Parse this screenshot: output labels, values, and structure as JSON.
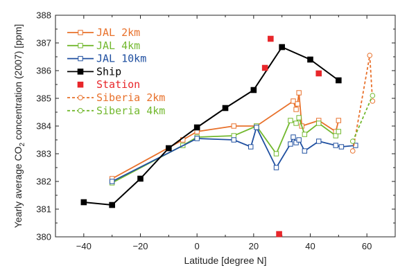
{
  "chart_data": {
    "type": "line",
    "xlabel": "Latitude [degree N]",
    "ylabel_parts": [
      "Yearly average CO",
      "2",
      " concentration (2007) [ppm]"
    ],
    "xlim": [
      -50,
      70
    ],
    "ylim": [
      380,
      388
    ],
    "xticks": [
      -40,
      -20,
      0,
      20,
      40,
      60
    ],
    "yticks": [
      380,
      381,
      382,
      383,
      384,
      385,
      386,
      387,
      388
    ],
    "grid": false,
    "legend_position": "top-left",
    "series": [
      {
        "name": "JAL 2km",
        "color": "#e8702a",
        "marker": "open-square",
        "line": "solid",
        "x": [
          -30,
          -5,
          0,
          13,
          21,
          34,
          35,
          35.5,
          36,
          37,
          43,
          49,
          50
        ],
        "y": [
          382.1,
          383.5,
          383.8,
          384.0,
          384.0,
          384.9,
          384.6,
          384.8,
          385.2,
          384.0,
          384.2,
          383.8,
          384.2
        ]
      },
      {
        "name": "JAL 4km",
        "color": "#72b82e",
        "marker": "open-square",
        "line": "solid",
        "x": [
          -30,
          -5,
          0,
          13,
          21,
          28,
          33,
          35,
          36,
          38,
          43,
          49,
          50
        ],
        "y": [
          381.95,
          383.3,
          383.6,
          383.65,
          384.0,
          383.0,
          384.2,
          384.1,
          384.3,
          383.7,
          384.1,
          383.65,
          383.8
        ]
      },
      {
        "name": "JAL 10km",
        "color": "#1f4fa0",
        "marker": "open-square",
        "line": "solid",
        "x": [
          -30,
          0,
          13,
          19,
          21,
          28,
          33,
          34,
          35,
          36,
          38,
          43,
          49,
          51,
          56
        ],
        "y": [
          382.0,
          383.55,
          383.5,
          383.25,
          383.95,
          382.5,
          383.35,
          383.6,
          383.4,
          383.5,
          383.1,
          383.45,
          383.3,
          383.25,
          383.3
        ]
      },
      {
        "name": "Ship",
        "color": "#000000",
        "marker": "filled-square",
        "line": "solid",
        "x": [
          -40,
          -30,
          -20,
          -10,
          0,
          10,
          20,
          30,
          40,
          50
        ],
        "y": [
          381.25,
          381.15,
          382.1,
          383.2,
          383.95,
          384.65,
          385.3,
          386.85,
          386.4,
          385.65
        ]
      },
      {
        "name": "Station",
        "color": "#e8262a",
        "marker": "filled-square",
        "line": "none",
        "x": [
          24,
          26,
          29,
          43
        ],
        "y": [
          386.1,
          387.15,
          380.1,
          385.9
        ]
      },
      {
        "name": "Siberia 2km",
        "color": "#e8702a",
        "marker": "open-circle",
        "line": "dashed",
        "x": [
          55,
          61,
          62
        ],
        "y": [
          383.1,
          386.55,
          384.9
        ]
      },
      {
        "name": "Siberia 4km",
        "color": "#72b82e",
        "marker": "open-circle",
        "line": "dashed",
        "x": [
          55,
          62
        ],
        "y": [
          383.45,
          385.1
        ]
      }
    ]
  }
}
